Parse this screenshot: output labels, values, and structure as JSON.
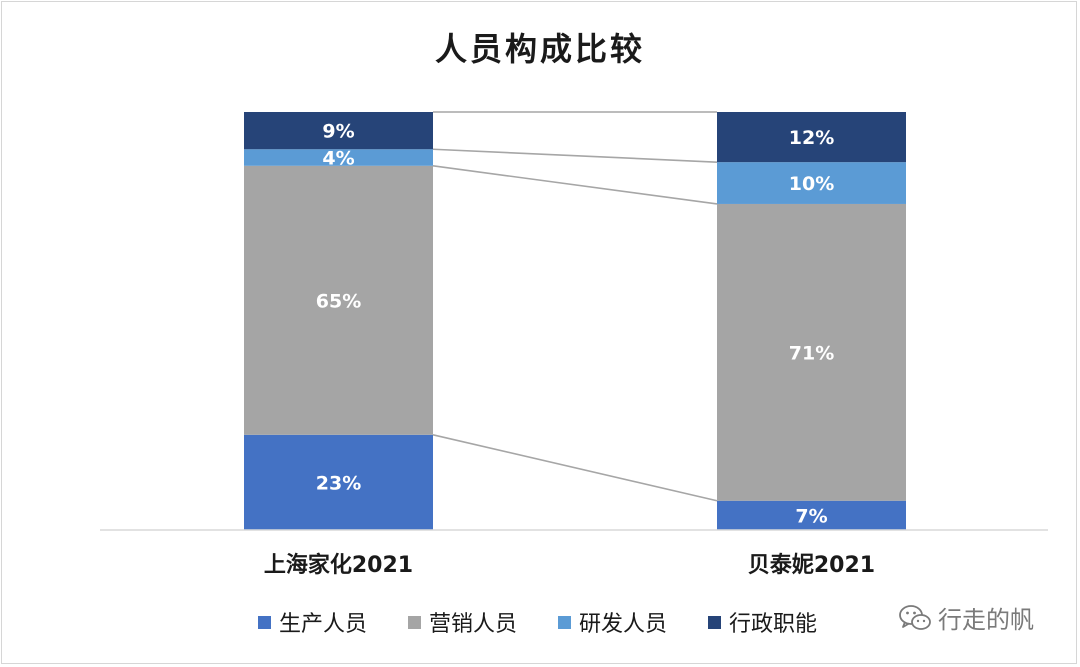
{
  "chart_data": {
    "type": "bar",
    "stacked": true,
    "normalized": true,
    "title": "人员构成比较",
    "categories": [
      "上海家化2021",
      "贝泰妮2021"
    ],
    "series": [
      {
        "name": "生产人员",
        "values": [
          23,
          7
        ],
        "labels": [
          "23%",
          "7%"
        ],
        "color": "#4472C4"
      },
      {
        "name": "营销人员",
        "values": [
          65,
          71
        ],
        "labels": [
          "65%",
          "71%"
        ],
        "color": "#A5A5A5"
      },
      {
        "name": "研发人员",
        "values": [
          4,
          10
        ],
        "labels": [
          "4%",
          "10%"
        ],
        "color": "#5B9BD5"
      },
      {
        "name": "行政职能",
        "values": [
          9,
          12
        ],
        "labels": [
          "9%",
          "12%"
        ],
        "color": "#264478"
      }
    ],
    "ylim": [
      0,
      100
    ],
    "grid": false,
    "legend_position": "bottom",
    "series_lines": true
  },
  "watermark": {
    "text": "行走的帆",
    "icon": "wechat-icon"
  }
}
